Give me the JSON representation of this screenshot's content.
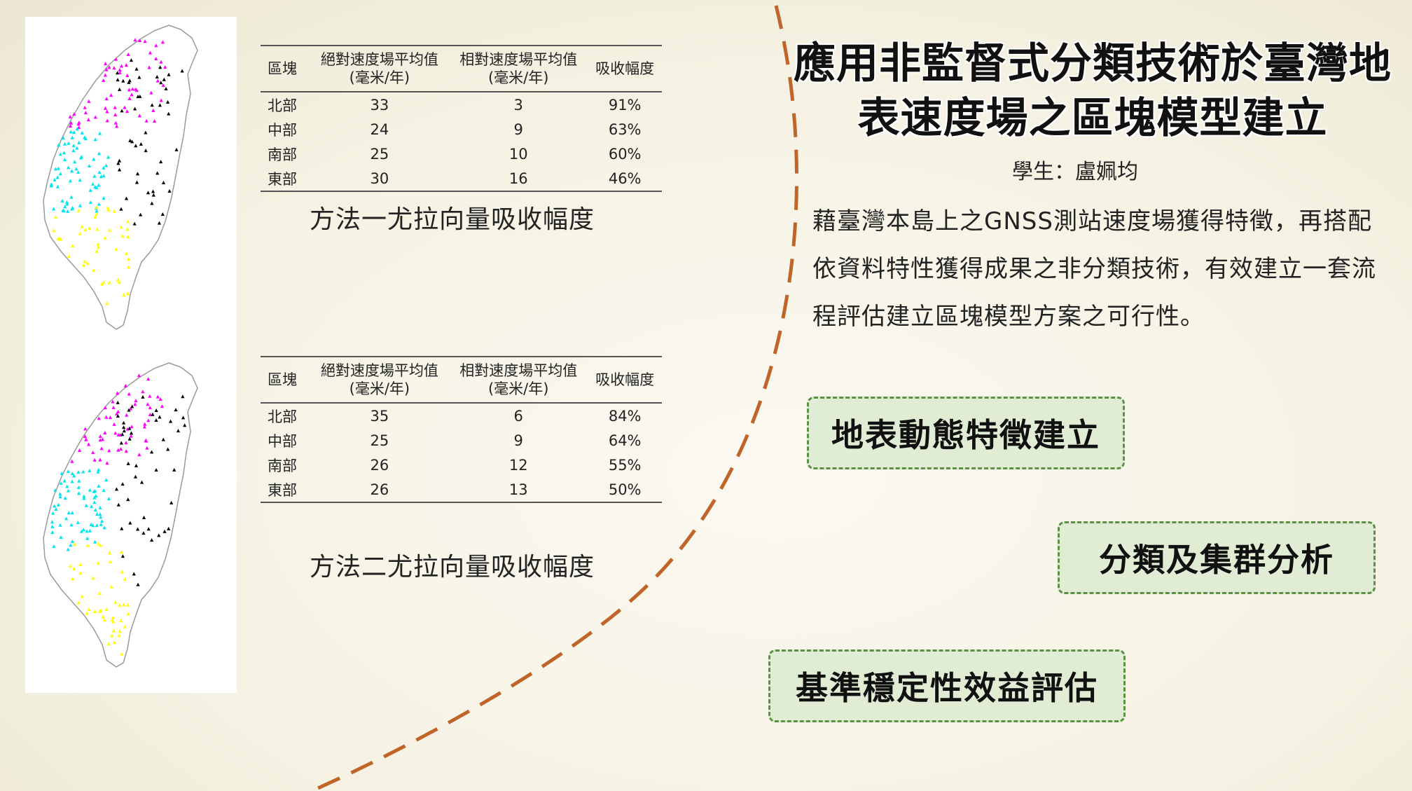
{
  "title": "應用非監督式分類技術於臺灣地表速度場之區塊模型建立",
  "student": "學生：盧姵均",
  "description": "藉臺灣本島上之GNSS測站速度場獲得特徵，再搭配依資料特性獲得成果之非分類技術，有效建立一套流程評估建立區塊模型方案之可行性。",
  "tables": [
    {
      "headers": {
        "block": "區塊",
        "absolute": "絕對速度場平均值",
        "absolute_unit": "(毫米/年)",
        "relative": "相對速度場平均值",
        "relative_unit": "(毫米/年)",
        "absorption": "吸收幅度"
      },
      "rows": [
        {
          "region": "北部",
          "absolute": "33",
          "relative": "3",
          "absorption": "91%"
        },
        {
          "region": "中部",
          "absolute": "24",
          "relative": "9",
          "absorption": "63%"
        },
        {
          "region": "南部",
          "absolute": "25",
          "relative": "10",
          "absorption": "60%"
        },
        {
          "region": "東部",
          "absolute": "30",
          "relative": "16",
          "absorption": "46%"
        }
      ],
      "caption": "方法一尤拉向量吸收幅度"
    },
    {
      "headers": {
        "block": "區塊",
        "absolute": "絕對速度場平均值",
        "absolute_unit": "(毫米/年)",
        "relative": "相對速度場平均值",
        "relative_unit": "(毫米/年)",
        "absorption": "吸收幅度"
      },
      "rows": [
        {
          "region": "北部",
          "absolute": "35",
          "relative": "6",
          "absorption": "84%"
        },
        {
          "region": "中部",
          "absolute": "25",
          "relative": "9",
          "absorption": "64%"
        },
        {
          "region": "南部",
          "absolute": "26",
          "relative": "12",
          "absorption": "55%"
        },
        {
          "region": "東部",
          "absolute": "26",
          "relative": "13",
          "absorption": "50%"
        }
      ],
      "caption": "方法二尤拉向量吸收幅度"
    }
  ],
  "flow": [
    "地表動態特徵建立",
    "分類及集群分析",
    "基準穩定性效益評估"
  ],
  "colors": {
    "north": "#ff00ff",
    "central": "#00e5ee",
    "south": "#ffff00",
    "east": "#000000",
    "arc": "#c0652a",
    "box_border": "#5d9044",
    "box_fill": "#e1ecd5"
  }
}
